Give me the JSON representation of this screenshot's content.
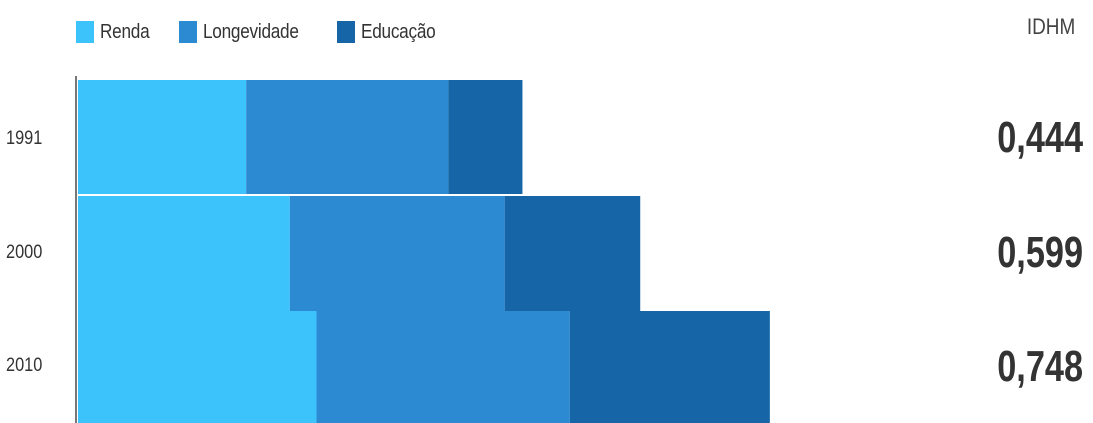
{
  "legend": [
    {
      "label": "Renda",
      "color": "#3cc3fb"
    },
    {
      "label": "Longevidade",
      "color": "#2b8ad2"
    },
    {
      "label": "Educação",
      "color": "#1665a6"
    }
  ],
  "idhm_header": "IDHM",
  "chart_data": {
    "type": "bar",
    "orientation": "horizontal",
    "stacked": true,
    "categories": [
      "1991",
      "2000",
      "2010"
    ],
    "series": [
      {
        "name": "Renda",
        "color": "#3cc3fb",
        "values": [
          0.227,
          0.286,
          0.322
        ]
      },
      {
        "name": "Longevidade",
        "color": "#2b8ad2",
        "values": [
          0.273,
          0.29,
          0.342
        ]
      },
      {
        "name": "Educação",
        "color": "#1665a6",
        "values": [
          0.1,
          0.183,
          0.27
        ]
      }
    ],
    "idhm": [
      "0,444",
      "0,599",
      "0,748"
    ],
    "xlim": [
      0,
      1.35
    ],
    "grid": false,
    "legend_position": "top-left"
  }
}
